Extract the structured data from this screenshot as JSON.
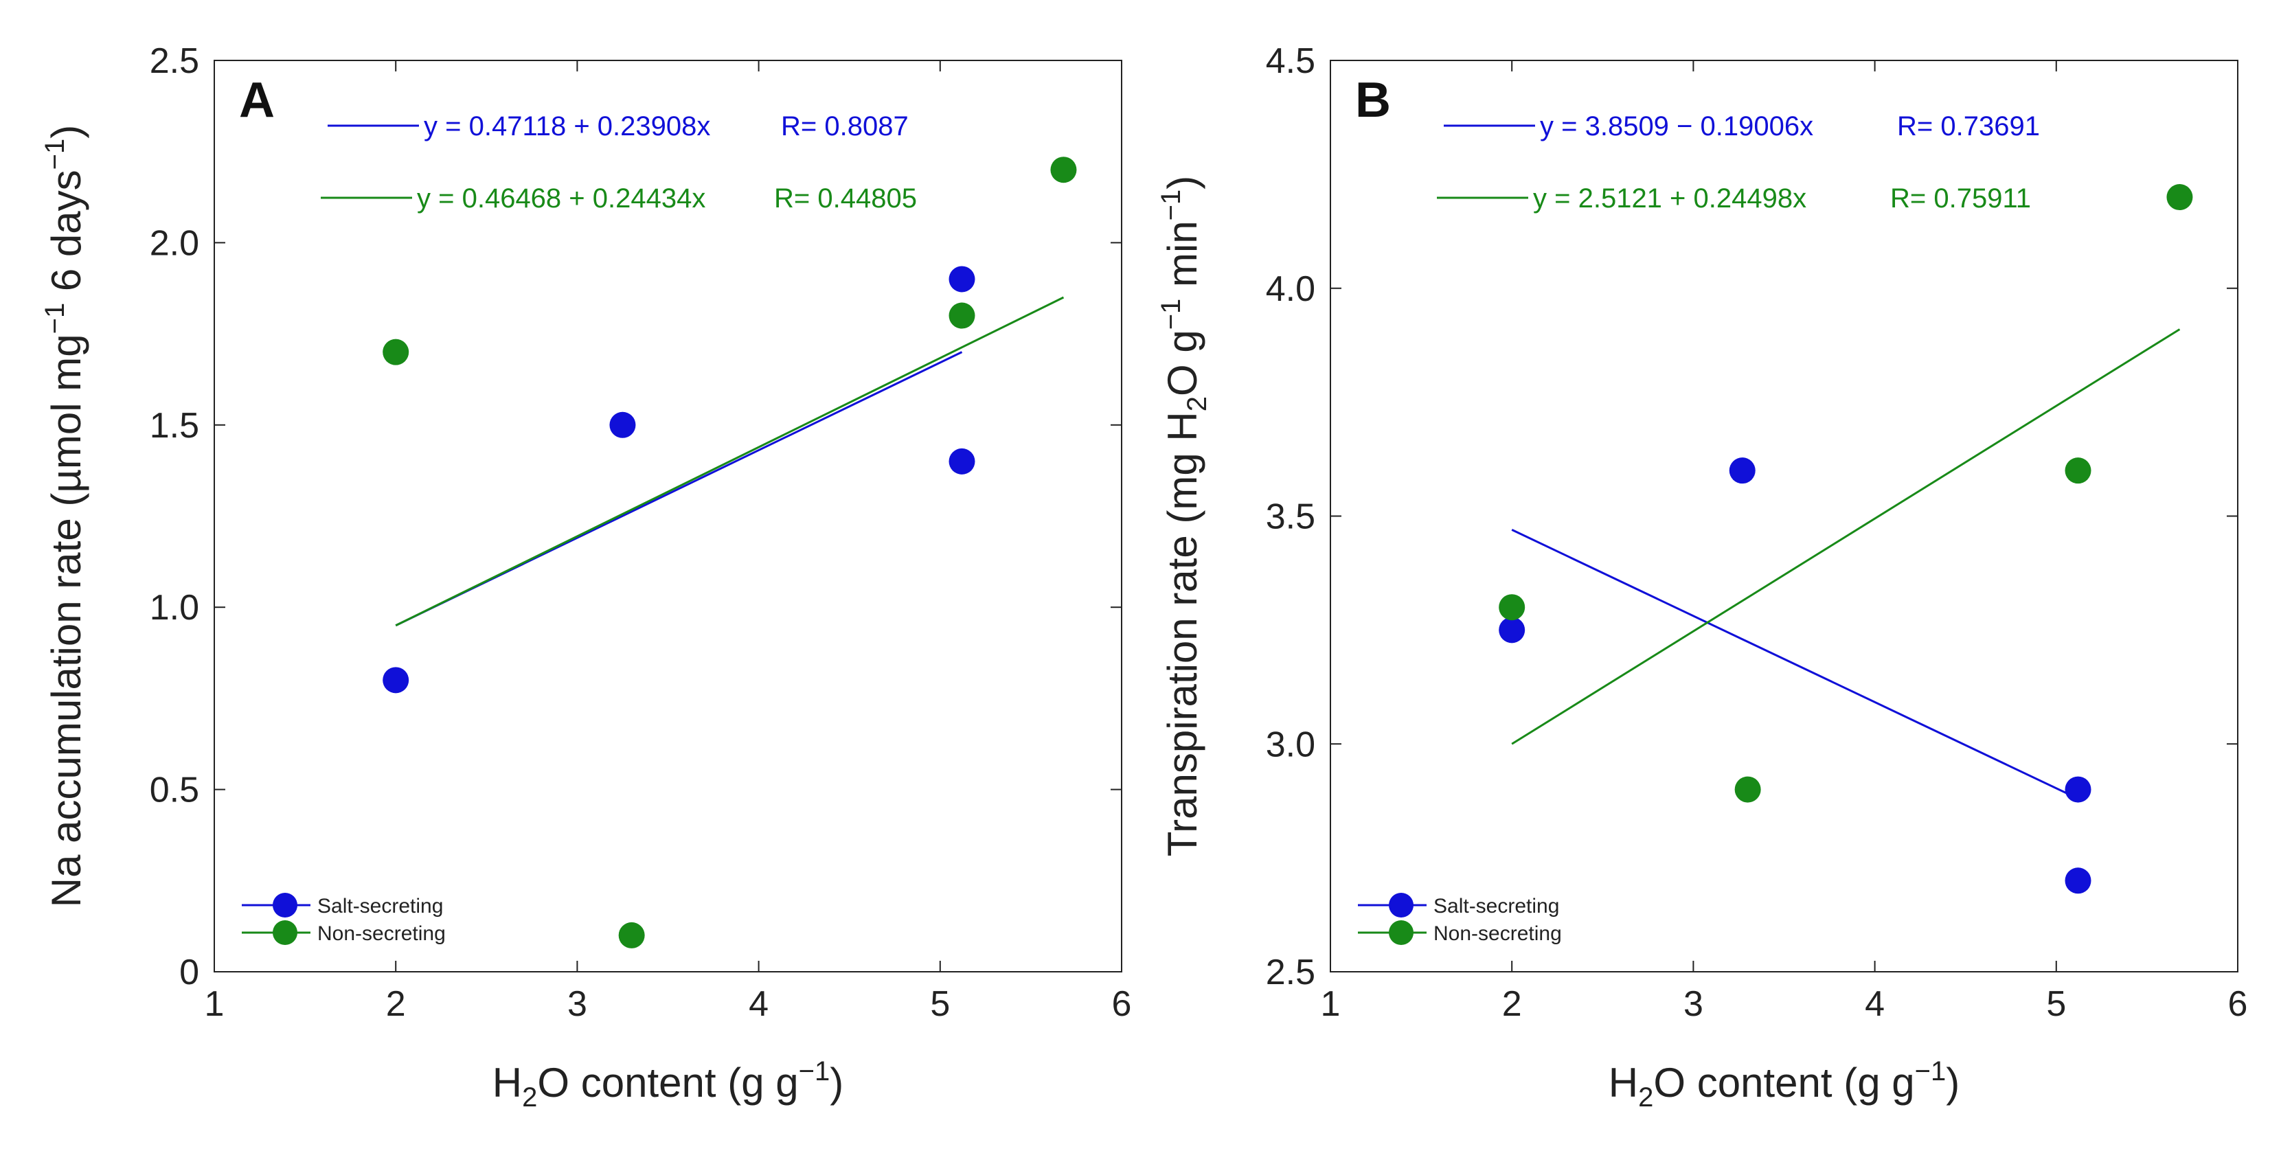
{
  "chart_data": [
    {
      "type": "scatter",
      "panel_label": "A",
      "xlabel": {
        "prefix": "H",
        "sub": "2",
        "mid": "O content (g g",
        "sup": "−1",
        "suffix": ")"
      },
      "ylabel": {
        "prefix": "Na accumulation rate (µmol mg",
        "sup1": "−1",
        "mid": " 6 days",
        "sup2": "−1",
        "suffix": ")"
      },
      "xlim": [
        1,
        6
      ],
      "ylim": [
        0,
        2.5
      ],
      "xticks": [
        1,
        2,
        3,
        4,
        5,
        6
      ],
      "yticks": [
        0,
        0.5,
        1,
        1.5,
        2,
        2.5
      ],
      "xtick_labels": [
        "1",
        "2",
        "3",
        "4",
        "5",
        "6"
      ],
      "ytick_labels": [
        "0",
        "0.5",
        "1.0",
        "1.5",
        "2.0",
        "2.5"
      ],
      "series": [
        {
          "name": "Salt-secreting",
          "color": "#1010d8",
          "points": [
            [
              2.0,
              0.8
            ],
            [
              3.25,
              1.5
            ],
            [
              5.12,
              1.9
            ],
            [
              5.12,
              1.4
            ]
          ],
          "fit": {
            "x": [
              2.0,
              5.12
            ],
            "y": [
              0.95,
              1.7
            ]
          },
          "equation": "y = 0.47118 + 0.23908x",
          "r_label": "R= 0.8087"
        },
        {
          "name": "Non-secreting",
          "color": "#188a18",
          "points": [
            [
              2.0,
              1.7
            ],
            [
              3.3,
              0.1
            ],
            [
              5.12,
              1.8
            ],
            [
              5.68,
              2.2
            ]
          ],
          "fit": {
            "x": [
              2.0,
              5.68
            ],
            "y": [
              0.95,
              1.85
            ]
          },
          "equation": "y = 0.46468 + 0.24434x",
          "r_label": "R= 0.44805"
        }
      ],
      "legend": [
        "Salt-secreting",
        "Non-secreting"
      ],
      "legend_position": "bottom-left"
    },
    {
      "type": "scatter",
      "panel_label": "B",
      "xlabel": {
        "prefix": "H",
        "sub": "2",
        "mid": "O content (g g",
        "sup": "−1",
        "suffix": ")"
      },
      "ylabel": {
        "prefix": "Transpiration rate (mg H",
        "sub": "2",
        "mid": "O g",
        "sup1": "−1",
        "mid2": " min",
        "sup2": "−1",
        "suffix": ")"
      },
      "xlim": [
        1,
        6
      ],
      "ylim": [
        2.5,
        4.5
      ],
      "xticks": [
        1,
        2,
        3,
        4,
        5,
        6
      ],
      "yticks": [
        2.5,
        3,
        3.5,
        4,
        4.5
      ],
      "xtick_labels": [
        "1",
        "2",
        "3",
        "4",
        "5",
        "6"
      ],
      "ytick_labels": [
        "2.5",
        "3.0",
        "3.5",
        "4.0",
        "4.5"
      ],
      "series": [
        {
          "name": "Salt-secreting",
          "color": "#1010d8",
          "points": [
            [
              2.0,
              3.25
            ],
            [
              3.27,
              3.6
            ],
            [
              5.12,
              2.9
            ],
            [
              5.12,
              2.7
            ]
          ],
          "fit": {
            "x": [
              2.0,
              5.12
            ],
            "y": [
              3.47,
              2.88
            ]
          },
          "equation": "y = 3.8509 − 0.19006x",
          "r_label": "R= 0.73691"
        },
        {
          "name": "Non-secreting",
          "color": "#188a18",
          "points": [
            [
              2.0,
              3.3
            ],
            [
              3.3,
              2.9
            ],
            [
              5.12,
              3.6
            ],
            [
              5.68,
              4.2
            ]
          ],
          "fit": {
            "x": [
              2.0,
              5.68
            ],
            "y": [
              3.0,
              3.91
            ]
          },
          "equation": "y = 2.5121 + 0.24498x",
          "r_label": "R= 0.75911"
        }
      ],
      "legend": [
        "Salt-secreting",
        "Non-secreting"
      ],
      "legend_position": "bottom-left"
    }
  ]
}
